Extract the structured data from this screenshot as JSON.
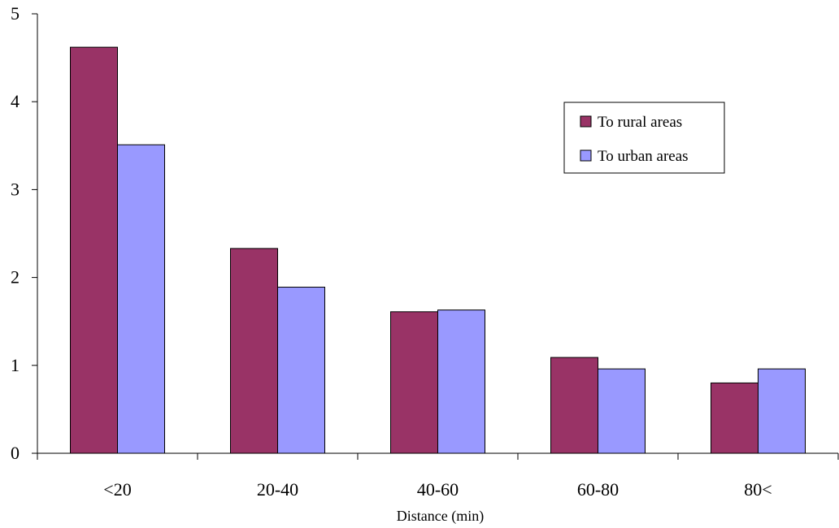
{
  "chart_data": {
    "type": "bar",
    "title": "",
    "xlabel": "Distance (min)",
    "ylabel": "",
    "ylim": [
      0,
      5
    ],
    "yticks": [
      0,
      1,
      2,
      3,
      4,
      5
    ],
    "categories": [
      "<20",
      "20-40",
      "40-60",
      "60-80",
      "80<"
    ],
    "series": [
      {
        "name": "To rural areas",
        "color": "#993366",
        "values": [
          4.62,
          2.33,
          1.61,
          1.09,
          0.8
        ]
      },
      {
        "name": "To urban areas",
        "color": "#9999ff",
        "values": [
          3.51,
          1.89,
          1.63,
          0.96,
          0.96
        ]
      }
    ],
    "grid": false,
    "legend": "top-right"
  }
}
